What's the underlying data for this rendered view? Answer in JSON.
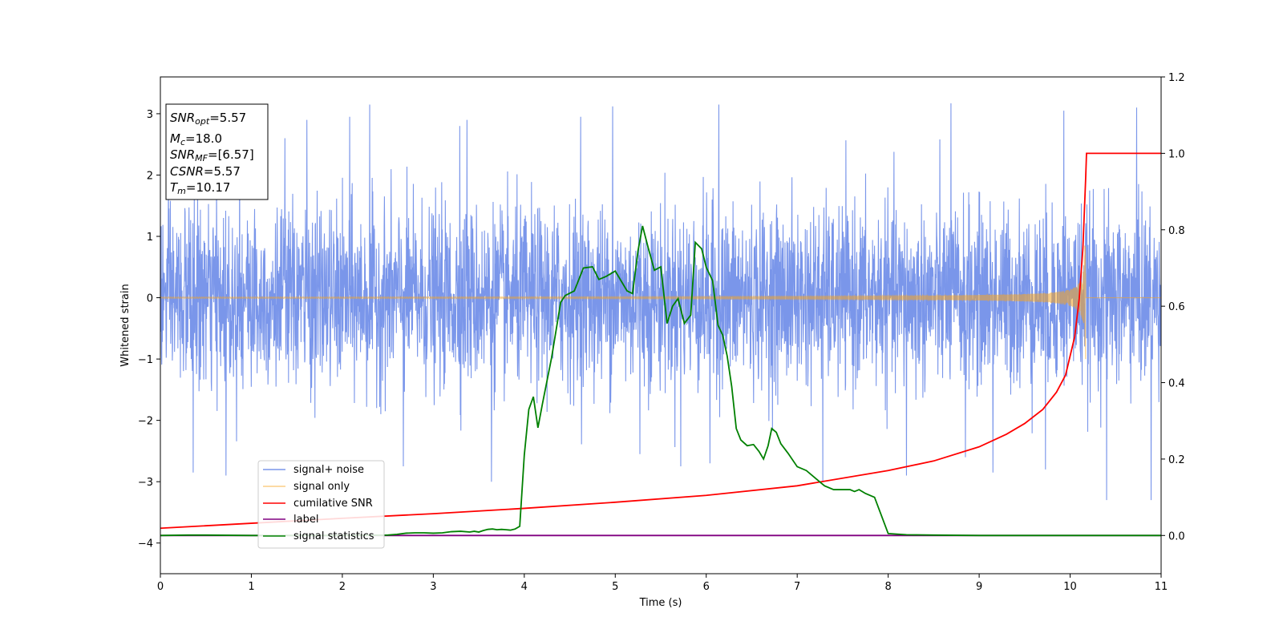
{
  "chart_data": {
    "type": "line",
    "title": "",
    "xlabel": "Time (s)",
    "ylabel": "Whitened strain",
    "xlim": [
      0,
      11
    ],
    "ylim": [
      -4.5,
      3.6
    ],
    "y2lim": [
      -0.1,
      1.2
    ],
    "xticks": [
      "0",
      "1",
      "2",
      "3",
      "4",
      "5",
      "6",
      "7",
      "8",
      "9",
      "10",
      "11"
    ],
    "yticks": [
      -4,
      -3,
      -2,
      -1,
      0,
      1,
      2,
      3
    ],
    "yticklabels": [
      "−4",
      "−3",
      "−2",
      "−1",
      "0",
      "1",
      "2",
      "3"
    ],
    "y2ticks": [
      "0.0",
      "0.2",
      "0.4",
      "0.6",
      "0.8",
      "1.0",
      "1.2"
    ],
    "grid": false,
    "legend_position": "lower-left",
    "info_box": {
      "snr_opt": {
        "sym": "SNR",
        "sub": "opt",
        "value": "=5.57"
      },
      "mc": {
        "sym": "M",
        "sub": "c",
        "value": "=18.0"
      },
      "snr_mf": {
        "sym": "SNR",
        "sub": "MF",
        "value": "=[6.57]"
      },
      "csnr": {
        "sym": "CSNR",
        "value": "=5.57"
      },
      "tm": {
        "sym": "T",
        "sub": "m",
        "value": "=10.17"
      }
    },
    "series": [
      {
        "name": "signal+ noise",
        "color": "#4169e1",
        "axis": "left",
        "description_range": [
          -3.3,
          3.25
        ],
        "peaks": [
          [
            2.3,
            3.15
          ],
          [
            4.97,
            3.12
          ],
          [
            5.27,
            3.05
          ],
          [
            6.14,
            3.15
          ],
          [
            8.69,
            3.17
          ],
          [
            10.73,
            3.1
          ],
          [
            9.93,
            3.05
          ],
          [
            2.08,
            2.95
          ],
          [
            4.62,
            2.95
          ],
          [
            0.87,
            2.6
          ],
          [
            1.37,
            2.6
          ],
          [
            1.61,
            2.9
          ],
          [
            3.29,
            2.8
          ],
          [
            3.37,
            2.9
          ],
          [
            2.67,
            -2.75
          ],
          [
            3.64,
            -3.0
          ],
          [
            5.27,
            -2.55
          ],
          [
            5.72,
            -2.75
          ],
          [
            6.04,
            -2.7
          ],
          [
            7.28,
            -3.0
          ],
          [
            8.2,
            -2.9
          ],
          [
            8.85,
            -2.6
          ],
          [
            9.15,
            -2.85
          ],
          [
            9.73,
            -2.8
          ],
          [
            10.4,
            -3.3
          ],
          [
            10.89,
            -3.35
          ],
          [
            0.72,
            -2.9
          ],
          [
            0.36,
            -2.85
          ]
        ]
      },
      {
        "name": "signal only",
        "color": "#f5a623",
        "axis": "left",
        "chirp": {
          "t_merge": 10.17,
          "peak_amplitude": 0.85,
          "tail_amplitude": -1.0
        }
      },
      {
        "name": "cumilative SNR",
        "color": "#ff0000",
        "axis": "right",
        "x": [
          0,
          1,
          2,
          3,
          4,
          5,
          6,
          7,
          8,
          8.5,
          9,
          9.3,
          9.5,
          9.7,
          9.85,
          9.95,
          10.05,
          10.1,
          10.14,
          10.17,
          10.18,
          11
        ],
        "values": [
          0.019,
          0.032,
          0.045,
          0.057,
          0.071,
          0.087,
          0.105,
          0.13,
          0.17,
          0.195,
          0.232,
          0.265,
          0.293,
          0.33,
          0.375,
          0.42,
          0.52,
          0.62,
          0.75,
          0.93,
          1.0,
          1.0
        ]
      },
      {
        "name": "label",
        "color": "#800080",
        "axis": "right",
        "x": [
          0,
          11
        ],
        "values": [
          0.0,
          0.0
        ]
      },
      {
        "name": "signal statistics",
        "color": "#008000",
        "axis": "right",
        "x": [
          0,
          0.3,
          0.5,
          1,
          1.5,
          2,
          2.5,
          2.6,
          2.7,
          2.8,
          2.9,
          3.0,
          3.1,
          3.2,
          3.3,
          3.4,
          3.45,
          3.5,
          3.55,
          3.6,
          3.65,
          3.7,
          3.75,
          3.8,
          3.85,
          3.9,
          3.95,
          4.0,
          4.05,
          4.1,
          4.15,
          4.2,
          4.3,
          4.4,
          4.45,
          4.55,
          4.65,
          4.75,
          4.82,
          4.9,
          5.0,
          5.13,
          5.19,
          5.25,
          5.3,
          5.36,
          5.43,
          5.5,
          5.57,
          5.63,
          5.69,
          5.76,
          5.83,
          5.88,
          5.95,
          6.0,
          6.07,
          6.13,
          6.18,
          6.23,
          6.28,
          6.33,
          6.38,
          6.45,
          6.52,
          6.58,
          6.63,
          6.68,
          6.72,
          6.77,
          6.82,
          6.9,
          7.0,
          7.1,
          7.2,
          7.3,
          7.4,
          7.5,
          7.58,
          7.63,
          7.68,
          7.75,
          7.85,
          8.0,
          8.2,
          8.5,
          9,
          10,
          11
        ],
        "values": [
          0.0,
          0.001,
          0.001,
          0.0,
          0.0,
          0.0,
          0.001,
          0.003,
          0.006,
          0.007,
          0.007,
          0.006,
          0.007,
          0.01,
          0.011,
          0.009,
          0.011,
          0.009,
          0.013,
          0.016,
          0.017,
          0.015,
          0.016,
          0.015,
          0.014,
          0.017,
          0.024,
          0.21,
          0.33,
          0.363,
          0.282,
          0.345,
          0.465,
          0.61,
          0.628,
          0.64,
          0.7,
          0.703,
          0.67,
          0.678,
          0.692,
          0.64,
          0.633,
          0.745,
          0.81,
          0.755,
          0.694,
          0.703,
          0.555,
          0.6,
          0.62,
          0.555,
          0.577,
          0.767,
          0.75,
          0.702,
          0.667,
          0.55,
          0.525,
          0.47,
          0.39,
          0.28,
          0.25,
          0.235,
          0.238,
          0.22,
          0.2,
          0.235,
          0.28,
          0.27,
          0.24,
          0.215,
          0.18,
          0.17,
          0.15,
          0.13,
          0.12,
          0.12,
          0.12,
          0.115,
          0.12,
          0.11,
          0.1,
          0.005,
          0.002,
          0.001,
          0.0,
          0.0,
          0.0
        ]
      }
    ]
  }
}
